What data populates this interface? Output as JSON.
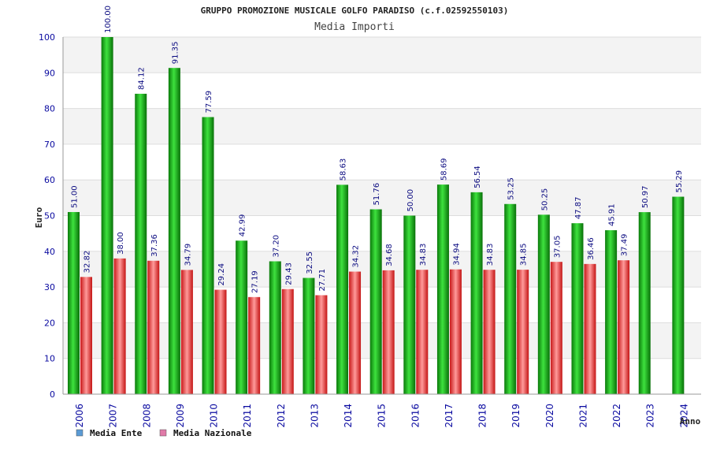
{
  "chart_data": {
    "type": "bar",
    "title": "GRUPPO PROMOZIONE MUSICALE GOLFO PARADISO (c.f.02592550103)",
    "subtitle": "Media Importi",
    "xlabel": "Anno",
    "ylabel": "Euro",
    "ylim": [
      0,
      100
    ],
    "yticks": [
      0,
      10,
      20,
      30,
      40,
      50,
      60,
      70,
      80,
      90,
      100
    ],
    "grid": true,
    "legend_position": "bottom-left",
    "categories": [
      "2006",
      "2007",
      "2008",
      "2009",
      "2010",
      "2011",
      "2012",
      "2013",
      "2014",
      "2015",
      "2016",
      "2017",
      "2018",
      "2019",
      "2020",
      "2021",
      "2022",
      "2023",
      "2024"
    ],
    "series": [
      {
        "name": "Media Ente",
        "legend_color": "#5b9bd5",
        "bar_color": "#11a011",
        "values": [
          51.0,
          100.0,
          84.12,
          91.35,
          77.59,
          42.99,
          37.2,
          32.55,
          58.63,
          51.76,
          50.0,
          58.69,
          56.54,
          53.25,
          50.25,
          47.87,
          45.91,
          50.97,
          55.29
        ],
        "labels": [
          "51.00",
          "100.00",
          "84.12",
          "91.35",
          "77.59",
          "42.99",
          "37.20",
          "32.55",
          "58.63",
          "51.76",
          "50.00",
          "58.69",
          "56.54",
          "53.25",
          "50.25",
          "47.87",
          "45.91",
          "50.97",
          "55.29"
        ]
      },
      {
        "name": "Media Nazionale",
        "legend_color": "#e07aa8",
        "bar_color": "#e03030",
        "values": [
          32.82,
          38.0,
          37.36,
          34.79,
          29.24,
          27.19,
          29.43,
          27.71,
          34.32,
          34.68,
          34.83,
          34.94,
          34.83,
          34.85,
          37.05,
          36.46,
          37.49,
          null,
          null
        ],
        "labels": [
          "32.82",
          "38.00",
          "37.36",
          "34.79",
          "29.24",
          "27.19",
          "29.43",
          "27.71",
          "34.32",
          "34.68",
          "34.83",
          "34.94",
          "34.83",
          "34.85",
          "37.05",
          "36.46",
          "37.49",
          "",
          ""
        ]
      }
    ]
  }
}
